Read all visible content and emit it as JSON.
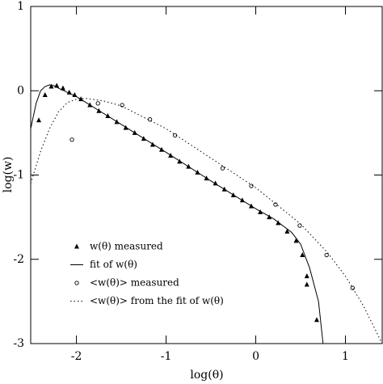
{
  "chart_data": {
    "type": "line",
    "xlabel": "log(θ)",
    "ylabel": "log(w)",
    "xlim": [
      -2.51,
      1.41
    ],
    "ylim": [
      -3,
      1
    ],
    "xticks": [
      -2,
      -1,
      0,
      1
    ],
    "yticks": [
      -3,
      -2,
      -1,
      0,
      1
    ],
    "series": [
      {
        "name": "w(θ) measured",
        "style": "markers",
        "marker": "triangle",
        "color": "#000000",
        "x": [
          -2.42,
          -2.35,
          -2.28,
          -2.22,
          -2.15,
          -2.08,
          -2.02,
          -1.95,
          -1.85,
          -1.75,
          -1.65,
          -1.55,
          -1.45,
          -1.35,
          -1.25,
          -1.15,
          -1.05,
          -0.95,
          -0.85,
          -0.75,
          -0.65,
          -0.55,
          -0.45,
          -0.35,
          -0.25,
          -0.15,
          -0.05,
          0.05,
          0.15,
          0.25,
          0.35,
          0.45,
          0.52,
          0.57,
          0.57,
          0.68
        ],
        "values": [
          -0.35,
          -0.05,
          0.05,
          0.06,
          0.03,
          -0.02,
          -0.05,
          -0.1,
          -0.17,
          -0.24,
          -0.3,
          -0.37,
          -0.44,
          -0.5,
          -0.57,
          -0.64,
          -0.7,
          -0.77,
          -0.84,
          -0.9,
          -0.97,
          -1.04,
          -1.1,
          -1.17,
          -1.24,
          -1.3,
          -1.37,
          -1.44,
          -1.5,
          -1.57,
          -1.67,
          -1.78,
          -1.95,
          -2.2,
          -2.3,
          -2.72
        ]
      },
      {
        "name": "fit of w(θ)",
        "style": "solid",
        "color": "#000000",
        "x": [
          -2.51,
          -2.45,
          -2.4,
          -2.35,
          -2.3,
          -2.25,
          -2.2,
          -2.1,
          -2.0,
          -1.5,
          -1.0,
          -0.5,
          0,
          0.2,
          0.4,
          0.5,
          0.6,
          0.7,
          0.75
        ],
        "values": [
          -0.45,
          -0.15,
          0.0,
          0.05,
          0.07,
          0.06,
          0.03,
          -0.02,
          -0.07,
          -0.4,
          -0.73,
          -1.07,
          -1.4,
          -1.52,
          -1.68,
          -1.82,
          -2.1,
          -2.5,
          -3.0
        ]
      },
      {
        "name": "<w(θ)> measured",
        "style": "markers",
        "marker": "circle",
        "color": "#000000",
        "x": [
          -2.05,
          -1.76,
          -1.49,
          -1.18,
          -0.9,
          -0.37,
          -0.05,
          0.22,
          0.49,
          0.79,
          1.08
        ],
        "values": [
          -0.58,
          -0.15,
          -0.17,
          -0.34,
          -0.53,
          -0.92,
          -1.13,
          -1.35,
          -1.6,
          -1.95,
          -2.34
        ]
      },
      {
        "name": "<w(θ)> from the fit of w(θ)",
        "style": "dotted",
        "color": "#000000",
        "x": [
          -2.51,
          -2.4,
          -2.3,
          -2.2,
          -2.1,
          -2.0,
          -1.9,
          -1.7,
          -1.5,
          -1.0,
          -0.5,
          0,
          0.5,
          0.8,
          1.0,
          1.2,
          1.41
        ],
        "values": [
          -1.1,
          -0.72,
          -0.45,
          -0.25,
          -0.14,
          -0.1,
          -0.09,
          -0.12,
          -0.18,
          -0.45,
          -0.8,
          -1.15,
          -1.58,
          -1.92,
          -2.2,
          -2.55,
          -3.0
        ]
      }
    ]
  }
}
